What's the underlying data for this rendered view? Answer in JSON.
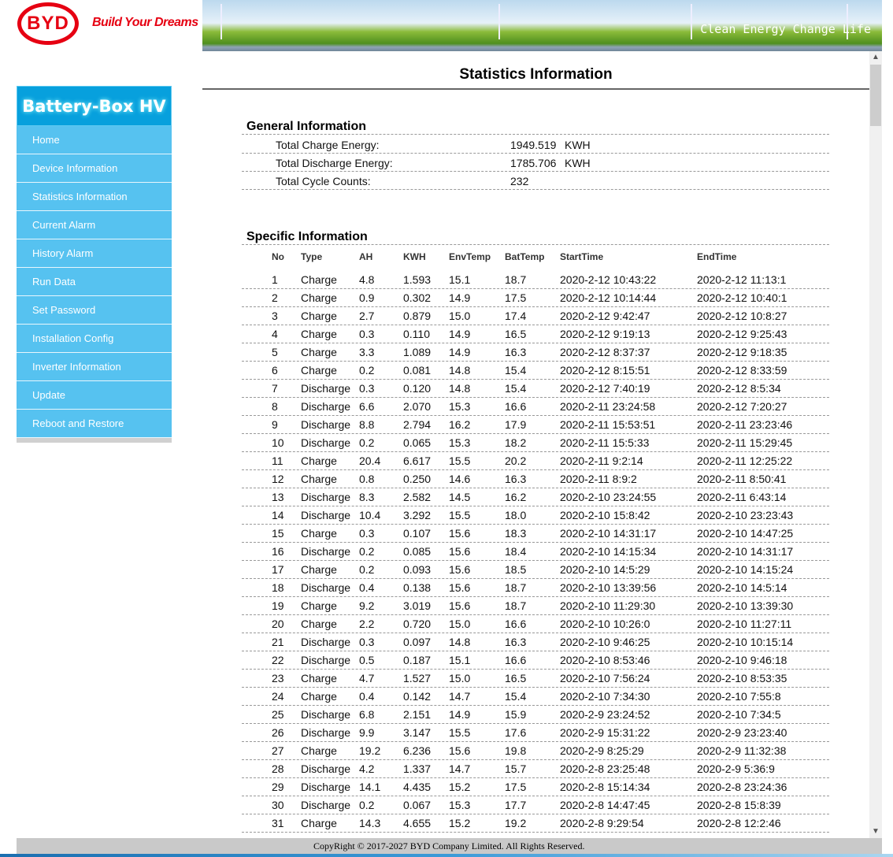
{
  "brand": {
    "logo": "BYD",
    "slogan": "Build Your Dreams",
    "banner_text": "Clean Energy Change Life"
  },
  "sidebar": {
    "title": "Battery-Box HV",
    "items": [
      {
        "label": "Home"
      },
      {
        "label": "Device Information"
      },
      {
        "label": "Statistics Information"
      },
      {
        "label": "Current Alarm"
      },
      {
        "label": "History Alarm"
      },
      {
        "label": "Run Data"
      },
      {
        "label": "Set Password"
      },
      {
        "label": "Installation Config"
      },
      {
        "label": "Inverter Information"
      },
      {
        "label": "Update"
      },
      {
        "label": "Reboot and Restore"
      }
    ]
  },
  "main": {
    "title": "Statistics Information",
    "general": {
      "heading": "General Information",
      "items": [
        {
          "label": "Total Charge Energy:",
          "value": "1949.519",
          "unit": "KWH"
        },
        {
          "label": "Total Discharge Energy:",
          "value": "1785.706",
          "unit": "KWH"
        },
        {
          "label": "Total Cycle Counts:",
          "value": "232",
          "unit": ""
        }
      ]
    },
    "specific": {
      "heading": "Specific Information",
      "columns": [
        "No",
        "Type",
        "AH",
        "KWH",
        "EnvTemp",
        "BatTemp",
        "StartTime",
        "EndTime"
      ],
      "rows": [
        [
          "1",
          "Charge",
          "4.8",
          "1.593",
          "15.1",
          "18.7",
          "2020-2-12 10:43:22",
          "2020-2-12 11:13:1"
        ],
        [
          "2",
          "Charge",
          "0.9",
          "0.302",
          "14.9",
          "17.5",
          "2020-2-12 10:14:44",
          "2020-2-12 10:40:1"
        ],
        [
          "3",
          "Charge",
          "2.7",
          "0.879",
          "15.0",
          "17.4",
          "2020-2-12 9:42:47",
          "2020-2-12 10:8:27"
        ],
        [
          "4",
          "Charge",
          "0.3",
          "0.110",
          "14.9",
          "16.5",
          "2020-2-12 9:19:13",
          "2020-2-12 9:25:43"
        ],
        [
          "5",
          "Charge",
          "3.3",
          "1.089",
          "14.9",
          "16.3",
          "2020-2-12 8:37:37",
          "2020-2-12 9:18:35"
        ],
        [
          "6",
          "Charge",
          "0.2",
          "0.081",
          "14.8",
          "15.4",
          "2020-2-12 8:15:51",
          "2020-2-12 8:33:59"
        ],
        [
          "7",
          "Discharge",
          "0.3",
          "0.120",
          "14.8",
          "15.4",
          "2020-2-12 7:40:19",
          "2020-2-12 8:5:34"
        ],
        [
          "8",
          "Discharge",
          "6.6",
          "2.070",
          "15.3",
          "16.6",
          "2020-2-11 23:24:58",
          "2020-2-12 7:20:27"
        ],
        [
          "9",
          "Discharge",
          "8.8",
          "2.794",
          "16.2",
          "17.9",
          "2020-2-11 15:53:51",
          "2020-2-11 23:23:46"
        ],
        [
          "10",
          "Discharge",
          "0.2",
          "0.065",
          "15.3",
          "18.2",
          "2020-2-11 15:5:33",
          "2020-2-11 15:29:45"
        ],
        [
          "11",
          "Charge",
          "20.4",
          "6.617",
          "15.5",
          "20.2",
          "2020-2-11 9:2:14",
          "2020-2-11 12:25:22"
        ],
        [
          "12",
          "Charge",
          "0.8",
          "0.250",
          "14.6",
          "16.3",
          "2020-2-11 8:9:2",
          "2020-2-11 8:50:41"
        ],
        [
          "13",
          "Discharge",
          "8.3",
          "2.582",
          "14.5",
          "16.2",
          "2020-2-10 23:24:55",
          "2020-2-11 6:43:14"
        ],
        [
          "14",
          "Discharge",
          "10.4",
          "3.292",
          "15.5",
          "18.0",
          "2020-2-10 15:8:42",
          "2020-2-10 23:23:43"
        ],
        [
          "15",
          "Charge",
          "0.3",
          "0.107",
          "15.6",
          "18.3",
          "2020-2-10 14:31:17",
          "2020-2-10 14:47:25"
        ],
        [
          "16",
          "Discharge",
          "0.2",
          "0.085",
          "15.6",
          "18.4",
          "2020-2-10 14:15:34",
          "2020-2-10 14:31:17"
        ],
        [
          "17",
          "Charge",
          "0.2",
          "0.093",
          "15.6",
          "18.5",
          "2020-2-10 14:5:29",
          "2020-2-10 14:15:24"
        ],
        [
          "18",
          "Discharge",
          "0.4",
          "0.138",
          "15.6",
          "18.7",
          "2020-2-10 13:39:56",
          "2020-2-10 14:5:14"
        ],
        [
          "19",
          "Charge",
          "9.2",
          "3.019",
          "15.6",
          "18.7",
          "2020-2-10 11:29:30",
          "2020-2-10 13:39:30"
        ],
        [
          "20",
          "Charge",
          "2.2",
          "0.720",
          "15.0",
          "16.6",
          "2020-2-10 10:26:0",
          "2020-2-10 11:27:11"
        ],
        [
          "21",
          "Discharge",
          "0.3",
          "0.097",
          "14.8",
          "16.3",
          "2020-2-10 9:46:25",
          "2020-2-10 10:15:14"
        ],
        [
          "22",
          "Discharge",
          "0.5",
          "0.187",
          "15.1",
          "16.6",
          "2020-2-10 8:53:46",
          "2020-2-10 9:46:18"
        ],
        [
          "23",
          "Charge",
          "4.7",
          "1.527",
          "15.0",
          "16.5",
          "2020-2-10 7:56:24",
          "2020-2-10 8:53:35"
        ],
        [
          "24",
          "Charge",
          "0.4",
          "0.142",
          "14.7",
          "15.4",
          "2020-2-10 7:34:30",
          "2020-2-10 7:55:8"
        ],
        [
          "25",
          "Discharge",
          "6.8",
          "2.151",
          "14.9",
          "15.9",
          "2020-2-9 23:24:52",
          "2020-2-10 7:34:5"
        ],
        [
          "26",
          "Discharge",
          "9.9",
          "3.147",
          "15.5",
          "17.6",
          "2020-2-9 15:31:22",
          "2020-2-9 23:23:40"
        ],
        [
          "27",
          "Charge",
          "19.2",
          "6.236",
          "15.6",
          "19.8",
          "2020-2-9 8:25:29",
          "2020-2-9 11:32:38"
        ],
        [
          "28",
          "Discharge",
          "4.2",
          "1.337",
          "14.7",
          "15.7",
          "2020-2-8 23:25:48",
          "2020-2-9 5:36:9"
        ],
        [
          "29",
          "Discharge",
          "14.1",
          "4.435",
          "15.2",
          "17.5",
          "2020-2-8 15:14:34",
          "2020-2-8 23:24:36"
        ],
        [
          "30",
          "Discharge",
          "0.2",
          "0.067",
          "15.3",
          "17.7",
          "2020-2-8 14:47:45",
          "2020-2-8 15:8:39"
        ],
        [
          "31",
          "Charge",
          "14.3",
          "4.655",
          "15.2",
          "19.2",
          "2020-2-8 9:29:54",
          "2020-2-8 12:2:46"
        ]
      ]
    }
  },
  "footer": {
    "copyright": "CopyRight © 2017-2027 BYD Company Limited. All Rights Reserved."
  },
  "colors": {
    "brand_red": "#e60012",
    "sidebar_title": "#07a0dd",
    "sidebar_item": "#56c2f0"
  },
  "icons": {
    "scroll_up": "chevron-up-icon",
    "scroll_down": "chevron-down-icon"
  }
}
